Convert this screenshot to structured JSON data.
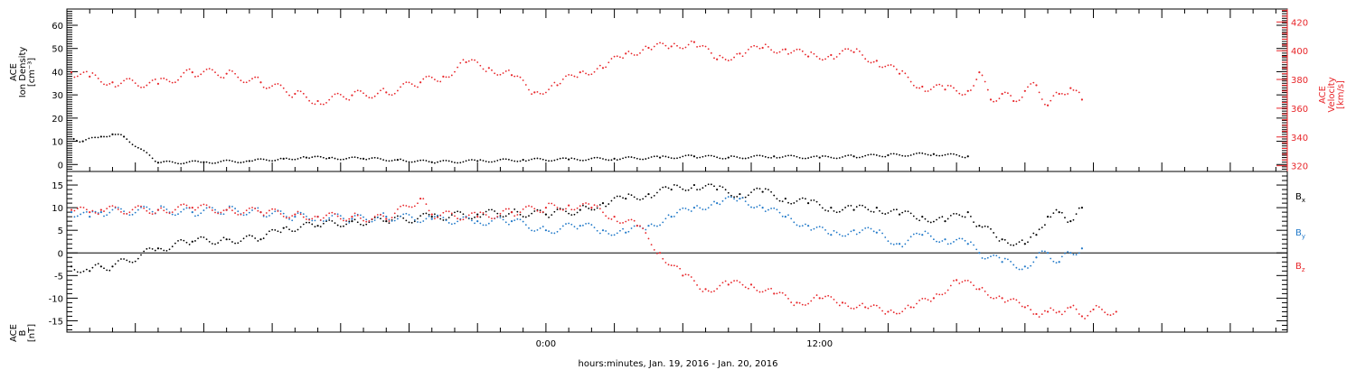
{
  "chart_data": [
    {
      "type": "scatter",
      "title": "",
      "ylabel": [
        "ACE",
        "Ion Density",
        "[cm⁻³]"
      ],
      "y2label": [
        "ACE",
        "Velocity",
        "[km/s]"
      ],
      "ylim": [
        -3,
        67
      ],
      "y2lim": [
        316,
        429
      ],
      "yticks": [
        0,
        10,
        20,
        30,
        40,
        50,
        60
      ],
      "y2ticks": [
        320,
        340,
        360,
        380,
        400,
        420
      ],
      "axis_colors": {
        "left": "#000000",
        "right": "#e8262a"
      },
      "series": [
        {
          "axis": "left",
          "color": "#000000",
          "points": [
            [
              -20.7,
              11
            ],
            [
              -20.3,
              10
            ],
            [
              -19.5,
              12
            ],
            [
              -19.0,
              13
            ],
            [
              -18.5,
              12
            ],
            [
              -17.0,
              0.8
            ],
            [
              -15.0,
              1.0
            ],
            [
              -13.0,
              1.5
            ],
            [
              -11.5,
              2.5
            ],
            [
              -10.5,
              3.0
            ],
            [
              -9.5,
              2.8
            ],
            [
              -8.0,
              2.5
            ],
            [
              -6.5,
              2.0
            ],
            [
              -5.0,
              1.0
            ],
            [
              -3.0,
              1.5
            ],
            [
              -1.0,
              2.0
            ],
            [
              1.0,
              2.2
            ],
            [
              3.0,
              2.5
            ],
            [
              5.0,
              3.0
            ],
            [
              6.5,
              3.5
            ],
            [
              8.0,
              3.0
            ],
            [
              10.0,
              3.5
            ],
            [
              12.0,
              3.0
            ],
            [
              13.5,
              3.5
            ],
            [
              15.0,
              4.0
            ],
            [
              17.0,
              4.5
            ],
            [
              18.5,
              3.5
            ]
          ]
        },
        {
          "axis": "right",
          "color": "#e8262a",
          "points": [
            [
              -20.8,
              385
            ],
            [
              -20.0,
              382
            ],
            [
              -19.0,
              378
            ],
            [
              -17.0,
              377
            ],
            [
              -15.5,
              385
            ],
            [
              -14.0,
              384
            ],
            [
              -12.5,
              378
            ],
            [
              -11.0,
              370
            ],
            [
              -10.0,
              365
            ],
            [
              -8.5,
              369
            ],
            [
              -7.0,
              371
            ],
            [
              -5.5,
              378
            ],
            [
              -4.5,
              382
            ],
            [
              -3.5,
              392
            ],
            [
              -2.5,
              388
            ],
            [
              -1.5,
              383
            ],
            [
              -0.5,
              371
            ],
            [
              0.5,
              376
            ],
            [
              1.5,
              385
            ],
            [
              2.5,
              388
            ],
            [
              3.5,
              398
            ],
            [
              4.5,
              402
            ],
            [
              5.5,
              403
            ],
            [
              6.5,
              406
            ],
            [
              7.5,
              394
            ],
            [
              8.5,
              398
            ],
            [
              9.5,
              402
            ],
            [
              10.5,
              401
            ],
            [
              11.5,
              396
            ],
            [
              12.5,
              397
            ],
            [
              13.5,
              399
            ],
            [
              14.5,
              393
            ],
            [
              15.5,
              384
            ],
            [
              16.5,
              375
            ],
            [
              17.5,
              373
            ],
            [
              18.5,
              372
            ],
            [
              19.0,
              385
            ],
            [
              19.5,
              366
            ],
            [
              20.0,
              370
            ],
            [
              20.5,
              365
            ],
            [
              21.0,
              372
            ],
            [
              21.5,
              376
            ],
            [
              22.0,
              362
            ],
            [
              22.5,
              370
            ],
            [
              23.0,
              374
            ],
            [
              23.5,
              366
            ]
          ]
        }
      ]
    },
    {
      "type": "scatter",
      "title": "",
      "ylabel": [
        "ACE",
        "B",
        "[nT]"
      ],
      "ylim": [
        -17.5,
        18
      ],
      "yticks": [
        -15,
        -10,
        -5,
        0,
        5,
        10,
        15
      ],
      "series": [
        {
          "name": "Bₓ",
          "color": "#000000",
          "points": [
            [
              -20.8,
              -3
            ],
            [
              -20.0,
              -4
            ],
            [
              -19.5,
              -3
            ],
            [
              -19.0,
              -3
            ],
            [
              -17.0,
              1
            ],
            [
              -15.5,
              2.5
            ],
            [
              -14.0,
              3
            ],
            [
              -12.5,
              3
            ],
            [
              -11.5,
              5.5
            ],
            [
              -10.0,
              6
            ],
            [
              -8.5,
              7
            ],
            [
              -7.0,
              7
            ],
            [
              -5.0,
              8
            ],
            [
              -3.0,
              8.5
            ],
            [
              -1.5,
              9
            ],
            [
              0.0,
              8.5
            ],
            [
              1.5,
              9.5
            ],
            [
              2.5,
              11
            ],
            [
              3.5,
              12
            ],
            [
              4.5,
              13
            ],
            [
              5.5,
              14
            ],
            [
              6.5,
              15
            ],
            [
              7.5,
              14
            ],
            [
              8.5,
              13
            ],
            [
              9.5,
              13.5
            ],
            [
              10.5,
              12
            ],
            [
              11.5,
              11
            ],
            [
              12.5,
              10
            ],
            [
              13.5,
              9.5
            ],
            [
              14.5,
              10
            ],
            [
              15.5,
              8.5
            ],
            [
              16.5,
              8
            ],
            [
              17.5,
              7
            ],
            [
              18.5,
              9
            ],
            [
              19.0,
              6
            ],
            [
              20.0,
              3
            ],
            [
              21.0,
              2
            ],
            [
              21.5,
              4
            ],
            [
              22.0,
              8
            ],
            [
              22.5,
              9
            ],
            [
              23.0,
              7
            ],
            [
              23.5,
              10
            ]
          ]
        },
        {
          "name": "Bᵧ",
          "color": "#1f78c8",
          "points": [
            [
              -20.8,
              9
            ],
            [
              -20.0,
              8
            ],
            [
              -19.5,
              9
            ],
            [
              -17.0,
              9.5
            ],
            [
              -15.5,
              9
            ],
            [
              -14.0,
              9.5
            ],
            [
              -12.5,
              9
            ],
            [
              -11.0,
              8
            ],
            [
              -10.0,
              8
            ],
            [
              -8.5,
              7.5
            ],
            [
              -7.0,
              8
            ],
            [
              -5.0,
              7.5
            ],
            [
              -3.0,
              7
            ],
            [
              -1.5,
              7
            ],
            [
              0.0,
              5
            ],
            [
              1.5,
              6
            ],
            [
              2.5,
              5
            ],
            [
              3.5,
              4.5
            ],
            [
              4.5,
              6
            ],
            [
              5.5,
              8
            ],
            [
              6.5,
              10
            ],
            [
              7.5,
              11
            ],
            [
              8.5,
              12
            ],
            [
              9.5,
              10
            ],
            [
              10.5,
              8
            ],
            [
              11.5,
              6
            ],
            [
              12.5,
              4
            ],
            [
              13.5,
              5
            ],
            [
              14.5,
              4.5
            ],
            [
              15.5,
              2
            ],
            [
              16.5,
              4
            ],
            [
              17.5,
              3
            ],
            [
              18.5,
              2
            ],
            [
              19.0,
              0
            ],
            [
              20.0,
              -2
            ],
            [
              21.0,
              -3
            ],
            [
              21.5,
              -1
            ],
            [
              22.0,
              0
            ],
            [
              22.5,
              -2
            ],
            [
              23.0,
              0
            ],
            [
              23.5,
              1
            ]
          ]
        },
        {
          "name": "B_z",
          "color": "#e8262a",
          "points": [
            [
              -20.8,
              9.5
            ],
            [
              -20.0,
              9
            ],
            [
              -19.5,
              9.5
            ],
            [
              -17.0,
              9.5
            ],
            [
              -15.5,
              10
            ],
            [
              -14.0,
              9.5
            ],
            [
              -12.5,
              9
            ],
            [
              -11.0,
              8.5
            ],
            [
              -10.0,
              8
            ],
            [
              -8.5,
              8
            ],
            [
              -7.0,
              7.5
            ],
            [
              -5.5,
              12
            ],
            [
              -5.0,
              8.5
            ],
            [
              -3.0,
              8
            ],
            [
              -1.5,
              9
            ],
            [
              0.0,
              10
            ],
            [
              1.0,
              10.5
            ],
            [
              2.0,
              10
            ],
            [
              3.0,
              8
            ],
            [
              4.0,
              6
            ],
            [
              5.0,
              0
            ],
            [
              6.0,
              -5
            ],
            [
              7.0,
              -8
            ],
            [
              8.0,
              -7
            ],
            [
              9.0,
              -7
            ],
            [
              10.0,
              -9
            ],
            [
              11.0,
              -11
            ],
            [
              12.0,
              -10
            ],
            [
              13.0,
              -11
            ],
            [
              14.0,
              -12
            ],
            [
              15.0,
              -13
            ],
            [
              16.0,
              -12
            ],
            [
              17.0,
              -10
            ],
            [
              18.0,
              -6
            ],
            [
              19.0,
              -8
            ],
            [
              20.0,
              -10
            ],
            [
              21.0,
              -12
            ],
            [
              21.5,
              -13.5
            ],
            [
              22.0,
              -13
            ],
            [
              22.5,
              -13
            ],
            [
              23.0,
              -12
            ],
            [
              23.5,
              -14
            ],
            [
              24.0,
              -12.5
            ],
            [
              25.0,
              -13
            ]
          ]
        }
      ],
      "legend": [
        "Bₓ",
        "Bᵧ",
        "B_z"
      ]
    }
  ],
  "xlim": [
    -21,
    32.5
  ],
  "xticks": [
    0,
    12
  ],
  "xtick_labels": [
    "0:00",
    "12:00"
  ],
  "xlabel": "hours:minutes, Jan. 19, 2016 - Jan. 20, 2016",
  "legend_labels": [
    {
      "base": "B",
      "sub": "x",
      "color": "#000000"
    },
    {
      "base": "B",
      "sub": "y",
      "color": "#1f78c8"
    },
    {
      "base": "B",
      "sub": "z",
      "color": "#e8262a"
    }
  ]
}
